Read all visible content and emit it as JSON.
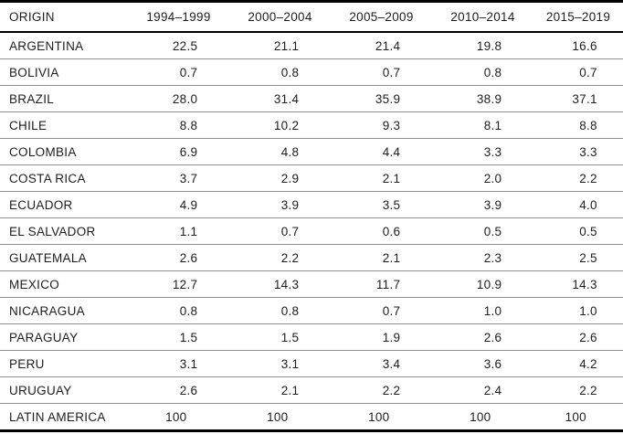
{
  "table": {
    "columns": [
      "ORIGIN",
      "1994–1999",
      "2000–2004",
      "2005–2009",
      "2010–2014",
      "2015–2019"
    ],
    "rows": [
      {
        "origin": "ARGENTINA",
        "values": [
          "22.5",
          "21.1",
          "21.4",
          "19.8",
          "16.6"
        ]
      },
      {
        "origin": "BOLIVIA",
        "values": [
          "0.7",
          "0.8",
          "0.7",
          "0.8",
          "0.7"
        ]
      },
      {
        "origin": "BRAZIL",
        "values": [
          "28.0",
          "31.4",
          "35.9",
          "38.9",
          "37.1"
        ]
      },
      {
        "origin": "CHILE",
        "values": [
          "8.8",
          "10.2",
          "9.3",
          "8.1",
          "8.8"
        ]
      },
      {
        "origin": "COLOMBIA",
        "values": [
          "6.9",
          "4.8",
          "4.4",
          "3.3",
          "3.3"
        ]
      },
      {
        "origin": "COSTA RICA",
        "values": [
          "3.7",
          "2.9",
          "2.1",
          "2.0",
          "2.2"
        ]
      },
      {
        "origin": "ECUADOR",
        "values": [
          "4.9",
          "3.9",
          "3.5",
          "3.9",
          "4.0"
        ]
      },
      {
        "origin": "EL SALVADOR",
        "values": [
          "1.1",
          "0.7",
          "0.6",
          "0.5",
          "0.5"
        ]
      },
      {
        "origin": "GUATEMALA",
        "values": [
          "2.6",
          "2.2",
          "2.1",
          "2.3",
          "2.5"
        ]
      },
      {
        "origin": "MEXICO",
        "values": [
          "12.7",
          "14.3",
          "11.7",
          "10.9",
          "14.3"
        ]
      },
      {
        "origin": "NICARAGUA",
        "values": [
          "0.8",
          "0.8",
          "0.7",
          "1.0",
          "1.0"
        ]
      },
      {
        "origin": "PARAGUAY",
        "values": [
          "1.5",
          "1.5",
          "1.9",
          "2.6",
          "2.6"
        ]
      },
      {
        "origin": "PERU",
        "values": [
          "3.1",
          "3.1",
          "3.4",
          "3.6",
          "4.2"
        ]
      },
      {
        "origin": "URUGUAY",
        "values": [
          "2.6",
          "2.1",
          "2.2",
          "2.4",
          "2.2"
        ]
      },
      {
        "origin": "LATIN AMERICA",
        "values": [
          "100",
          "100",
          "100",
          "100",
          "100"
        ]
      }
    ]
  },
  "colors": {
    "text": "#1d1d1d",
    "rule_heavy": "#000000",
    "rule_light": "#939393",
    "background": "#ffffff"
  },
  "chart_data": {
    "type": "table",
    "title": "",
    "columns": [
      "ORIGIN",
      "1994–1999",
      "2000–2004",
      "2005–2009",
      "2010–2014",
      "2015–2019"
    ],
    "rows": [
      [
        "ARGENTINA",
        22.5,
        21.1,
        21.4,
        19.8,
        16.6
      ],
      [
        "BOLIVIA",
        0.7,
        0.8,
        0.7,
        0.8,
        0.7
      ],
      [
        "BRAZIL",
        28.0,
        31.4,
        35.9,
        38.9,
        37.1
      ],
      [
        "CHILE",
        8.8,
        10.2,
        9.3,
        8.1,
        8.8
      ],
      [
        "COLOMBIA",
        6.9,
        4.8,
        4.4,
        3.3,
        3.3
      ],
      [
        "COSTA RICA",
        3.7,
        2.9,
        2.1,
        2.0,
        2.2
      ],
      [
        "ECUADOR",
        4.9,
        3.9,
        3.5,
        3.9,
        4.0
      ],
      [
        "EL SALVADOR",
        1.1,
        0.7,
        0.6,
        0.5,
        0.5
      ],
      [
        "GUATEMALA",
        2.6,
        2.2,
        2.1,
        2.3,
        2.5
      ],
      [
        "MEXICO",
        12.7,
        14.3,
        11.7,
        10.9,
        14.3
      ],
      [
        "NICARAGUA",
        0.8,
        0.8,
        0.7,
        1.0,
        1.0
      ],
      [
        "PARAGUAY",
        1.5,
        1.5,
        1.9,
        2.6,
        2.6
      ],
      [
        "PERU",
        3.1,
        3.1,
        3.4,
        3.6,
        4.2
      ],
      [
        "URUGUAY",
        2.6,
        2.1,
        2.2,
        2.4,
        2.2
      ],
      [
        "LATIN AMERICA",
        100,
        100,
        100,
        100,
        100
      ]
    ]
  }
}
